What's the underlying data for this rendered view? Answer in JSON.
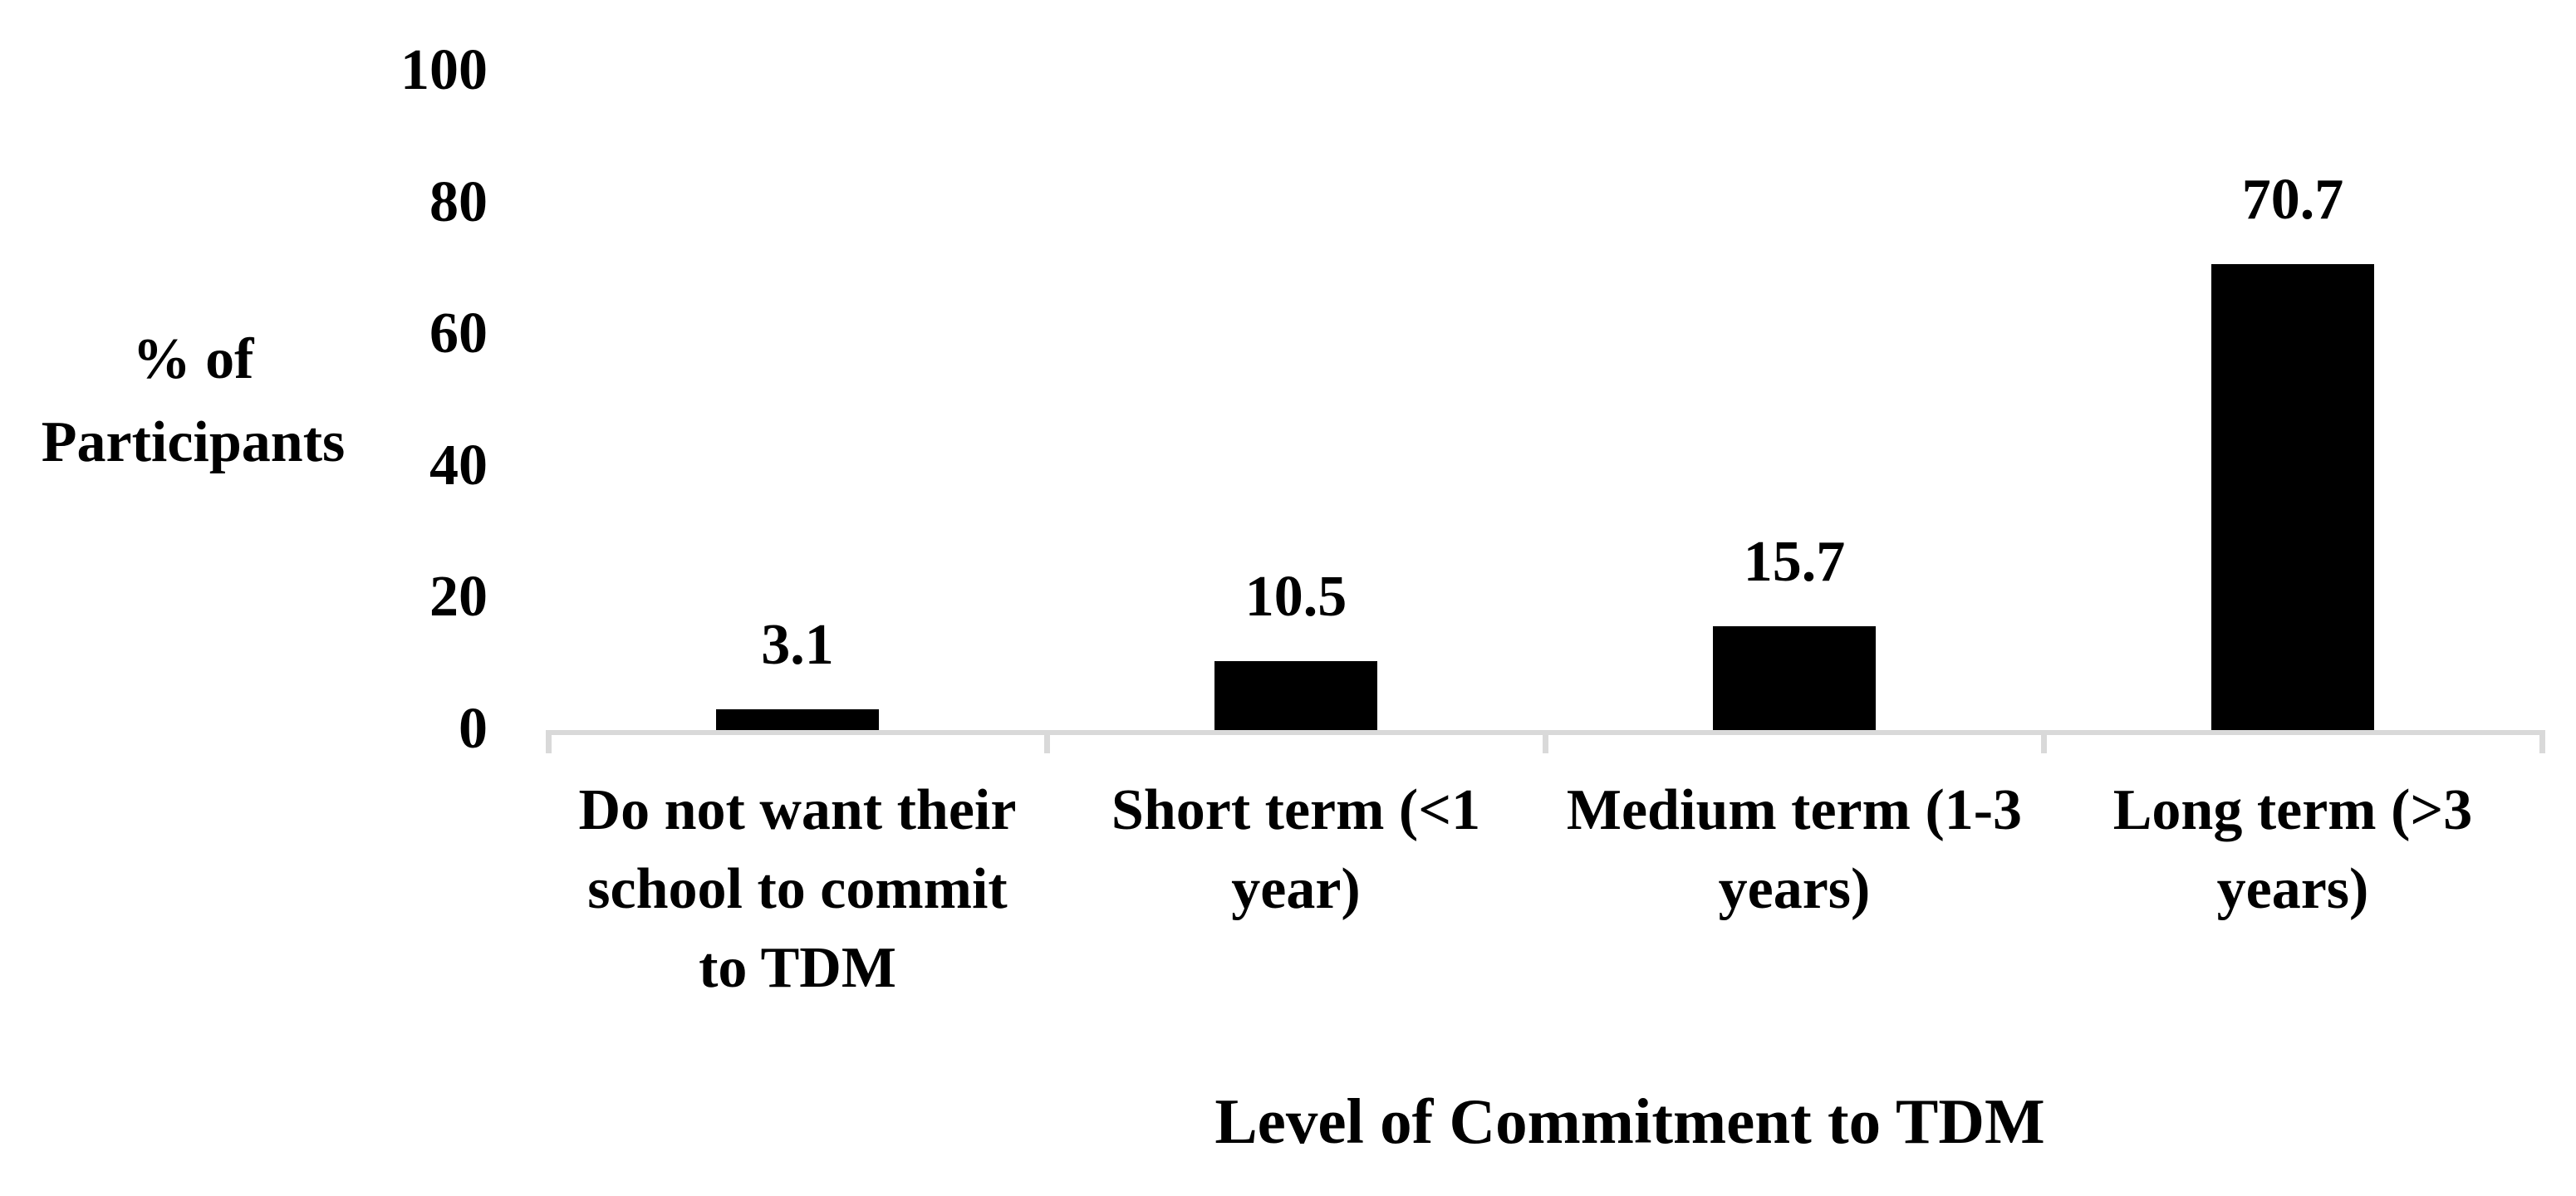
{
  "chart_data": {
    "type": "bar",
    "title": "",
    "categories": [
      "Do not want their school to commit to TDM",
      "Short term (<1 year)",
      "Medium term (1-3 years)",
      "Long term (>3 years)"
    ],
    "category_label_lines": [
      [
        "Do not want their",
        "school to commit",
        "to TDM"
      ],
      [
        "Short term (<1",
        "year)"
      ],
      [
        "Medium term (1-3",
        "years)"
      ],
      [
        "Long term (>3",
        "years)"
      ]
    ],
    "values": [
      3.1,
      10.5,
      15.7,
      70.7
    ],
    "data_labels": [
      "3.1",
      "10.5",
      "15.7",
      "70.7"
    ],
    "xlabel": "Level of Commitment to TDM",
    "ylabel": "% of Participants",
    "ylabel_lines": [
      "% of",
      "Participants"
    ],
    "ylim": [
      0,
      100
    ],
    "yticks": [
      0,
      20,
      40,
      60,
      80,
      100
    ],
    "ytick_labels": [
      "0",
      "20",
      "40",
      "60",
      "80",
      "100"
    ],
    "grid": false,
    "legend": "none",
    "bar_color": "#000000",
    "axis_line_color": "#d9d9d9",
    "text_color": "#000000",
    "background": "#ffffff"
  }
}
